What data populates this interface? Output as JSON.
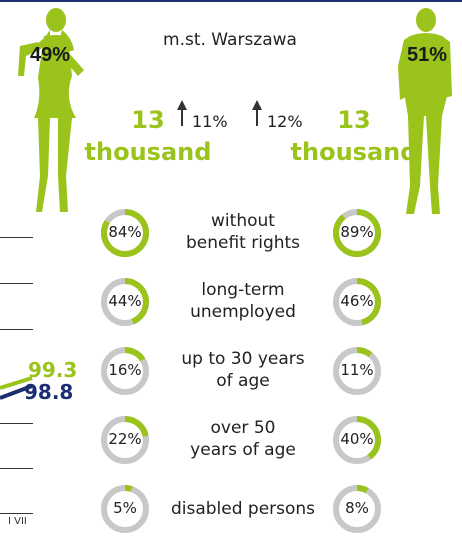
{
  "header": {
    "region": "m.st. Warszawa"
  },
  "women": {
    "share": "49%",
    "count_number": "13",
    "count_unit": "thousand",
    "change": "11%"
  },
  "men": {
    "share": "51%",
    "count_number": "13",
    "count_unit": "thousand",
    "change": "12%"
  },
  "categories": [
    {
      "label_line1": "without",
      "label_line2": "benefit rights",
      "women": 84,
      "men": 89,
      "women_label": "84%",
      "men_label": "89%"
    },
    {
      "label_line1": "long-term",
      "label_line2": "unemployed",
      "women": 44,
      "men": 46,
      "women_label": "44%",
      "men_label": "46%"
    },
    {
      "label_line1": "up to 30 years",
      "label_line2": "of age",
      "women": 16,
      "men": 11,
      "women_label": "16%",
      "men_label": "11%"
    },
    {
      "label_line1": "over 50",
      "label_line2": "years of age",
      "women": 22,
      "men": 40,
      "women_label": "22%",
      "men_label": "40%"
    },
    {
      "label_line1": "disabled persons",
      "label_line2": "",
      "women": 5,
      "men": 8,
      "women_label": "5%",
      "men_label": "8%"
    }
  ],
  "side_chart": {
    "value_women": "99.3",
    "value_men": "98.8",
    "tick": "I VII"
  },
  "colors": {
    "green": "#9ac31c",
    "navy": "#1b2e72",
    "track": "#c8c8c8"
  }
}
